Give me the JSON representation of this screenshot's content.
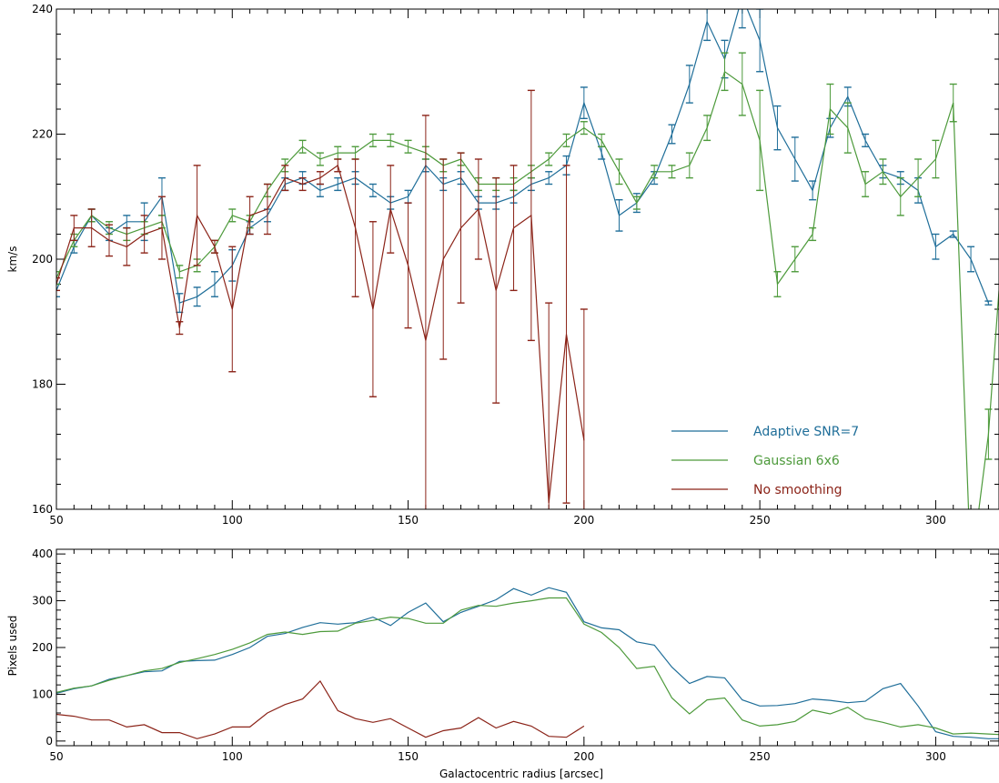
{
  "chart_data": [
    {
      "type": "line",
      "panel": "top",
      "ylabel": "km/s",
      "xlim": [
        50,
        318
      ],
      "ylim": [
        160,
        240
      ],
      "x_ticks": [
        50,
        100,
        150,
        200,
        250,
        300
      ],
      "y_ticks": [
        160,
        180,
        200,
        220,
        240
      ],
      "error_bars": true,
      "legend_position": "lower-right",
      "series": [
        {
          "name": "Adaptive SNR=7",
          "color": "#1f6e99",
          "x": [
            50,
            55,
            60,
            65,
            70,
            75,
            80,
            85,
            90,
            95,
            100,
            105,
            110,
            115,
            120,
            125,
            130,
            135,
            140,
            145,
            150,
            155,
            160,
            165,
            170,
            175,
            180,
            185,
            190,
            195,
            200,
            205,
            210,
            215,
            220,
            225,
            230,
            235,
            240,
            245,
            250,
            255,
            260,
            265,
            270,
            275,
            280,
            285,
            290,
            295,
            300,
            305,
            310,
            315
          ],
          "y": [
            195,
            202,
            207,
            204,
            206,
            206,
            210,
            193,
            194,
            196,
            199,
            205,
            207,
            212,
            213,
            211,
            212,
            213,
            211,
            209,
            210,
            215,
            212,
            213,
            209,
            209,
            210,
            212,
            213,
            215,
            225,
            217,
            207,
            209,
            213,
            220,
            228,
            238,
            232,
            242,
            235,
            221,
            216,
            211,
            221,
            226,
            219,
            214,
            213,
            211,
            202,
            204,
            200,
            193
          ],
          "err": [
            1,
            1,
            1,
            1,
            1,
            3,
            3,
            1.5,
            1.5,
            2,
            2.5,
            1,
            1,
            1,
            1,
            1,
            1,
            1,
            1,
            1,
            1,
            1,
            1,
            1,
            1,
            1,
            1,
            1,
            1,
            1.5,
            2.5,
            1,
            2.5,
            1.5,
            1,
            1.5,
            3,
            3,
            3,
            5,
            5,
            3.5,
            3.5,
            1.5,
            1.5,
            1.5,
            1,
            1,
            1,
            2,
            2,
            0.5,
            2,
            0.3
          ]
        },
        {
          "name": "Gaussian 6x6",
          "color": "#4d9a3b",
          "x": [
            50,
            55,
            60,
            65,
            70,
            75,
            80,
            85,
            90,
            95,
            100,
            105,
            110,
            115,
            120,
            125,
            130,
            135,
            140,
            145,
            150,
            155,
            160,
            165,
            170,
            175,
            180,
            185,
            190,
            195,
            200,
            205,
            210,
            215,
            220,
            225,
            230,
            235,
            240,
            245,
            250,
            255,
            260,
            265,
            270,
            275,
            280,
            285,
            290,
            295,
            300,
            305,
            310,
            315,
            318
          ],
          "y": [
            197,
            203,
            207,
            205,
            204,
            205,
            206,
            198,
            199,
            202,
            207,
            206,
            211,
            215,
            218,
            216,
            217,
            217,
            219,
            219,
            218,
            217,
            215,
            216,
            212,
            212,
            212,
            214,
            216,
            219,
            221,
            219,
            214,
            209,
            214,
            214,
            215,
            221,
            230,
            228,
            219,
            196,
            200,
            204,
            224,
            221,
            212,
            214,
            210,
            213,
            216,
            225,
            150,
            172,
            195
          ],
          "err": [
            1,
            1,
            1,
            1,
            1,
            1,
            1,
            1,
            1,
            1,
            1,
            1,
            1,
            1,
            1,
            1,
            1,
            1,
            1,
            1,
            1,
            1,
            1,
            1,
            1,
            1,
            1,
            1,
            1,
            1,
            1,
            1,
            2,
            1,
            1,
            1,
            2,
            2,
            3,
            5,
            8,
            2,
            2,
            1,
            4,
            4,
            2,
            2,
            3,
            3,
            3,
            3,
            3,
            4,
            0
          ]
        },
        {
          "name": "No smoothing",
          "color": "#8b2318",
          "x": [
            50,
            55,
            60,
            65,
            70,
            75,
            80,
            85,
            90,
            95,
            100,
            105,
            110,
            115,
            120,
            125,
            130,
            135,
            140,
            145,
            150,
            155,
            160,
            165,
            170,
            175,
            180,
            185,
            190,
            195,
            200
          ],
          "y": [
            196,
            205,
            205,
            203,
            202,
            204,
            205,
            189,
            207,
            202,
            192,
            207,
            208,
            213,
            212,
            213,
            215,
            205,
            192,
            208,
            199,
            187,
            200,
            205,
            208,
            195,
            205,
            207,
            161,
            188,
            171
          ],
          "err": [
            1,
            2,
            3,
            2.5,
            3,
            3,
            5,
            1,
            8,
            1,
            10,
            3,
            4,
            2,
            1,
            1,
            1,
            11,
            14,
            7,
            10,
            36,
            16,
            12,
            8,
            18,
            10,
            20,
            32,
            27,
            21
          ]
        }
      ]
    },
    {
      "type": "line",
      "panel": "bottom",
      "xlabel": "Galactocentric radius [arcsec]",
      "ylabel": "Pixels used",
      "xlim": [
        50,
        318
      ],
      "ylim": [
        -10,
        410
      ],
      "x_ticks": [
        50,
        100,
        150,
        200,
        250,
        300
      ],
      "y_ticks": [
        0,
        100,
        200,
        300,
        400
      ],
      "series": [
        {
          "color": "#1f6e99",
          "x": [
            50,
            55,
            60,
            65,
            70,
            75,
            80,
            85,
            90,
            95,
            100,
            105,
            110,
            115,
            120,
            125,
            130,
            135,
            140,
            145,
            150,
            155,
            160,
            165,
            170,
            175,
            180,
            185,
            190,
            195,
            200,
            205,
            210,
            215,
            220,
            225,
            230,
            235,
            240,
            245,
            250,
            255,
            260,
            265,
            270,
            275,
            280,
            285,
            290,
            295,
            300,
            305,
            310,
            315,
            318
          ],
          "y": [
            102,
            112,
            118,
            132,
            140,
            148,
            150,
            170,
            172,
            173,
            185,
            200,
            224,
            230,
            243,
            253,
            250,
            253,
            265,
            247,
            275,
            295,
            255,
            275,
            288,
            302,
            326,
            312,
            328,
            318,
            255,
            242,
            238,
            212,
            205,
            158,
            123,
            138,
            135,
            88,
            75,
            76,
            80,
            90,
            87,
            82,
            85,
            112,
            123,
            75,
            20,
            10,
            8,
            5,
            5
          ]
        },
        {
          "color": "#4d9a3b",
          "x": [
            50,
            55,
            60,
            65,
            70,
            75,
            80,
            85,
            90,
            95,
            100,
            105,
            110,
            115,
            120,
            125,
            130,
            135,
            140,
            145,
            150,
            155,
            160,
            165,
            170,
            175,
            180,
            185,
            190,
            195,
            200,
            205,
            210,
            215,
            220,
            225,
            230,
            235,
            240,
            245,
            250,
            255,
            260,
            265,
            270,
            275,
            280,
            285,
            290,
            295,
            300,
            305,
            310,
            315,
            318
          ],
          "y": [
            104,
            113,
            118,
            130,
            140,
            150,
            155,
            168,
            176,
            185,
            196,
            210,
            228,
            233,
            228,
            234,
            235,
            252,
            258,
            265,
            262,
            252,
            252,
            280,
            290,
            288,
            295,
            300,
            306,
            306,
            250,
            232,
            200,
            155,
            160,
            92,
            58,
            88,
            92,
            45,
            32,
            35,
            42,
            66,
            58,
            72,
            48,
            40,
            30,
            35,
            28,
            15,
            17,
            15,
            14
          ]
        },
        {
          "color": "#8b2318",
          "x": [
            50,
            55,
            60,
            65,
            70,
            75,
            80,
            85,
            90,
            95,
            100,
            105,
            110,
            115,
            120,
            125,
            130,
            135,
            140,
            145,
            150,
            155,
            160,
            165,
            170,
            175,
            180,
            185,
            190,
            195,
            200
          ],
          "y": [
            57,
            53,
            45,
            45,
            30,
            35,
            18,
            18,
            5,
            15,
            30,
            30,
            60,
            78,
            90,
            128,
            65,
            48,
            40,
            48,
            28,
            8,
            22,
            28,
            50,
            28,
            42,
            32,
            10,
            8,
            32
          ]
        }
      ]
    }
  ]
}
